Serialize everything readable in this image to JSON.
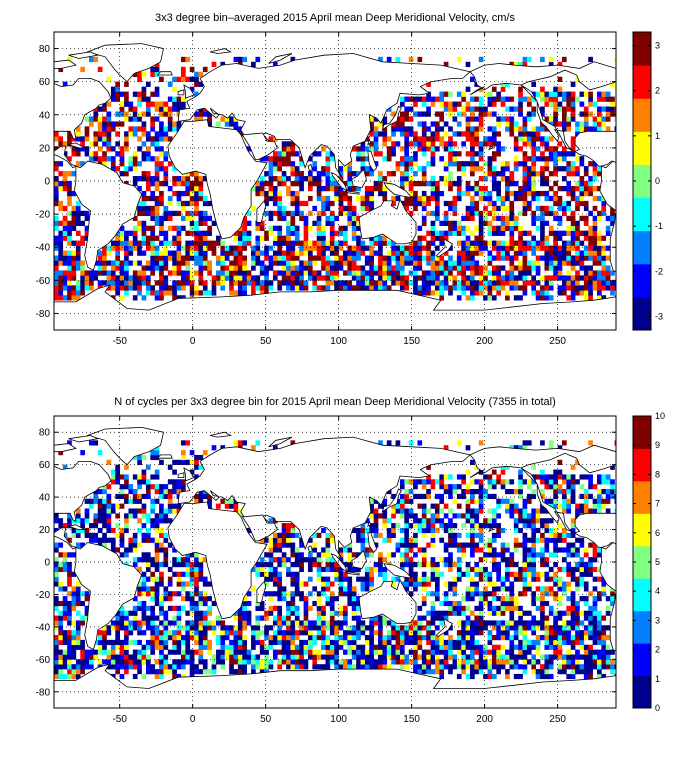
{
  "colormap": [
    "#00008f",
    "#0000ff",
    "#0080ff",
    "#00ffff",
    "#80ff80",
    "#ffff00",
    "#ff8000",
    "#ff0000",
    "#800000"
  ],
  "land_color": "#ffffff",
  "coast_color": "#000000",
  "chart_data": [
    {
      "type": "heatmap",
      "title": "3x3 degree bin–averaged 2015 April mean Deep Meridional Velocity, cm/s",
      "xlabel": "",
      "ylabel": "",
      "xlim": [
        -95,
        290
      ],
      "ylim": [
        -90,
        90
      ],
      "xticks": [
        -50,
        0,
        50,
        100,
        150,
        200,
        250
      ],
      "yticks": [
        -80,
        -60,
        -40,
        -20,
        0,
        20,
        40,
        60,
        80
      ],
      "grid": true,
      "bin_size_deg": 3,
      "colorbar": {
        "min": -3.3,
        "max": 3.3,
        "ticks": [
          -3,
          -2,
          -1,
          0,
          1,
          2,
          3
        ],
        "placement": "right"
      },
      "field_seed": 11,
      "coverage": 0.62
    },
    {
      "type": "heatmap",
      "title": "N of cycles per 3x3 degree bin for 2015 April mean Deep Meridional Velocity (7355 in total)",
      "xlabel": "",
      "ylabel": "",
      "xlim": [
        -95,
        290
      ],
      "ylim": [
        -90,
        90
      ],
      "xticks": [
        -50,
        0,
        50,
        100,
        150,
        200,
        250
      ],
      "yticks": [
        -80,
        -60,
        -40,
        -20,
        0,
        20,
        40,
        60,
        80
      ],
      "grid": true,
      "bin_size_deg": 3,
      "total_cycles": 7355,
      "colorbar": {
        "min": 0,
        "max": 10,
        "ticks": [
          0,
          1,
          2,
          3,
          4,
          5,
          6,
          7,
          8,
          9,
          10
        ],
        "placement": "right"
      },
      "field_seed": 11,
      "coverage": 0.62
    }
  ]
}
